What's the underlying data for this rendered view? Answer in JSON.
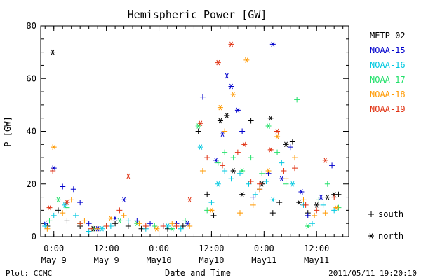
{
  "chart_data": {
    "type": "scatter",
    "title": "Hemispheric Power [GW]",
    "xlabel": "Date and Time",
    "ylabel": "P [GW]",
    "ylim": [
      0,
      80
    ],
    "xlim": [
      "2011-05-08 21:00",
      "2011-05-11 19:20"
    ],
    "y_ticks": [
      0,
      20,
      40,
      60,
      80
    ],
    "x_ticks": [
      {
        "time": "2011-05-09 00:00",
        "line1": "0:00",
        "line2": "May 9"
      },
      {
        "time": "2011-05-09 12:00",
        "line1": "12:00",
        "line2": "May 9"
      },
      {
        "time": "2011-05-10 00:00",
        "line1": "0:00",
        "line2": "May10"
      },
      {
        "time": "2011-05-10 12:00",
        "line1": "12:00",
        "line2": "May10"
      },
      {
        "time": "2011-05-11 00:00",
        "line1": "0:00",
        "line2": "May11"
      },
      {
        "time": "2011-05-11 12:00",
        "line1": "12:00",
        "line2": "May11"
      }
    ],
    "marker_key": [
      {
        "marker": "plus",
        "label": "south"
      },
      {
        "marker": "asterisk",
        "label": "north"
      }
    ],
    "series": [
      {
        "name": "METP-02",
        "color": "#000000",
        "points": [
          [
            "2011-05-08 22:30",
            4,
            "plus"
          ],
          [
            "2011-05-08 23:45",
            70,
            "asterisk"
          ],
          [
            "2011-05-09 01:00",
            10,
            "plus"
          ],
          [
            "2011-05-09 03:00",
            6,
            "plus"
          ],
          [
            "2011-05-09 06:00",
            4,
            "plus"
          ],
          [
            "2011-05-09 09:00",
            3,
            "asterisk"
          ],
          [
            "2011-05-09 14:00",
            5,
            "plus"
          ],
          [
            "2011-05-09 17:00",
            4,
            "plus"
          ],
          [
            "2011-05-09 20:00",
            3,
            "plus"
          ],
          [
            "2011-05-10 02:00",
            3,
            "plus"
          ],
          [
            "2011-05-10 05:30",
            4,
            "plus"
          ],
          [
            "2011-05-10 09:00",
            40,
            "plus"
          ],
          [
            "2011-05-10 11:00",
            16,
            "plus"
          ],
          [
            "2011-05-10 12:30",
            8,
            "plus"
          ],
          [
            "2011-05-10 14:00",
            44,
            "asterisk"
          ],
          [
            "2011-05-10 15:30",
            46,
            "asterisk"
          ],
          [
            "2011-05-10 17:00",
            25,
            "asterisk"
          ],
          [
            "2011-05-10 19:00",
            16,
            "asterisk"
          ],
          [
            "2011-05-10 21:00",
            44,
            "plus"
          ],
          [
            "2011-05-10 23:30",
            20,
            "asterisk"
          ],
          [
            "2011-05-11 01:30",
            45,
            "asterisk"
          ],
          [
            "2011-05-11 02:00",
            9,
            "plus"
          ],
          [
            "2011-05-11 03:30",
            13,
            "plus"
          ],
          [
            "2011-05-11 05:00",
            35,
            "asterisk"
          ],
          [
            "2011-05-11 06:30",
            36,
            "plus"
          ],
          [
            "2011-05-11 08:00",
            13,
            "asterisk"
          ],
          [
            "2011-05-11 10:00",
            9,
            "plus"
          ],
          [
            "2011-05-11 12:00",
            12,
            "asterisk"
          ],
          [
            "2011-05-11 14:30",
            15,
            "asterisk"
          ],
          [
            "2011-05-11 16:00",
            16,
            "asterisk"
          ],
          [
            "2011-05-11 17:00",
            16,
            "plus"
          ]
        ]
      },
      {
        "name": "NOAA-15",
        "color": "#0000cc",
        "points": [
          [
            "2011-05-08 22:00",
            5,
            "asterisk"
          ],
          [
            "2011-05-09 00:00",
            26,
            "asterisk"
          ],
          [
            "2011-05-09 02:00",
            19,
            "plus"
          ],
          [
            "2011-05-09 04:30",
            18,
            "plus"
          ],
          [
            "2011-05-09 06:00",
            13,
            "plus"
          ],
          [
            "2011-05-09 08:00",
            5,
            "plus"
          ],
          [
            "2011-05-09 10:00",
            3,
            "asterisk"
          ],
          [
            "2011-05-09 14:00",
            7,
            "asterisk"
          ],
          [
            "2011-05-09 16:00",
            14,
            "asterisk"
          ],
          [
            "2011-05-09 19:00",
            6,
            "plus"
          ],
          [
            "2011-05-09 22:00",
            5,
            "plus"
          ],
          [
            "2011-05-10 01:00",
            4,
            "plus"
          ],
          [
            "2011-05-10 04:00",
            5,
            "plus"
          ],
          [
            "2011-05-10 06:30",
            5,
            "asterisk"
          ],
          [
            "2011-05-10 10:00",
            53,
            "plus"
          ],
          [
            "2011-05-10 13:00",
            29,
            "asterisk"
          ],
          [
            "2011-05-10 14:30",
            39,
            "asterisk"
          ],
          [
            "2011-05-10 15:30",
            61,
            "asterisk"
          ],
          [
            "2011-05-10 16:30",
            57,
            "asterisk"
          ],
          [
            "2011-05-10 18:00",
            48,
            "asterisk"
          ],
          [
            "2011-05-10 19:00",
            40,
            "plus"
          ],
          [
            "2011-05-10 21:30",
            15,
            "plus"
          ],
          [
            "2011-05-10 23:00",
            18,
            "plus"
          ],
          [
            "2011-05-11 01:00",
            24,
            "plus"
          ],
          [
            "2011-05-11 02:00",
            73,
            "asterisk"
          ],
          [
            "2011-05-11 04:00",
            22,
            "asterisk"
          ],
          [
            "2011-05-11 06:00",
            34,
            "plus"
          ],
          [
            "2011-05-11 08:30",
            17,
            "asterisk"
          ],
          [
            "2011-05-11 10:00",
            8,
            "plus"
          ],
          [
            "2011-05-11 13:00",
            15,
            "asterisk"
          ],
          [
            "2011-05-11 15:30",
            27,
            "plus"
          ]
        ]
      },
      {
        "name": "NOAA-16",
        "color": "#00c8e0",
        "points": [
          [
            "2011-05-08 22:00",
            4,
            "plus"
          ],
          [
            "2011-05-09 00:00",
            8,
            "plus"
          ],
          [
            "2011-05-09 02:30",
            12,
            "asterisk"
          ],
          [
            "2011-05-09 05:00",
            8,
            "plus"
          ],
          [
            "2011-05-09 08:00",
            2,
            "plus"
          ],
          [
            "2011-05-09 11:00",
            3,
            "asterisk"
          ],
          [
            "2011-05-09 13:00",
            4,
            "plus"
          ],
          [
            "2011-05-09 17:00",
            6,
            "plus"
          ],
          [
            "2011-05-09 21:00",
            3,
            "plus"
          ],
          [
            "2011-05-10 02:00",
            4,
            "asterisk"
          ],
          [
            "2011-05-10 05:00",
            3,
            "plus"
          ],
          [
            "2011-05-10 09:30",
            34,
            "asterisk"
          ],
          [
            "2011-05-10 12:00",
            13,
            "plus"
          ],
          [
            "2011-05-10 13:30",
            20,
            "asterisk"
          ],
          [
            "2011-05-10 15:00",
            25,
            "plus"
          ],
          [
            "2011-05-10 16:30",
            22,
            "plus"
          ],
          [
            "2011-05-10 18:30",
            24,
            "plus"
          ],
          [
            "2011-05-10 20:30",
            20,
            "plus"
          ],
          [
            "2011-05-10 22:00",
            16,
            "plus"
          ],
          [
            "2011-05-11 00:30",
            21,
            "plus"
          ],
          [
            "2011-05-11 02:00",
            14,
            "asterisk"
          ],
          [
            "2011-05-11 04:00",
            28,
            "plus"
          ],
          [
            "2011-05-11 06:30",
            20,
            "asterisk"
          ],
          [
            "2011-05-11 09:00",
            12,
            "plus"
          ],
          [
            "2011-05-11 11:00",
            5,
            "plus"
          ],
          [
            "2011-05-11 13:30",
            12,
            "plus"
          ],
          [
            "2011-05-11 16:00",
            10,
            "plus"
          ]
        ]
      },
      {
        "name": "NOAA-17",
        "color": "#22e06a",
        "points": [
          [
            "2011-05-08 23:00",
            6,
            "plus"
          ],
          [
            "2011-05-09 01:00",
            14,
            "asterisk"
          ],
          [
            "2011-05-09 03:00",
            11,
            "plus"
          ],
          [
            "2011-05-09 06:00",
            5,
            "plus"
          ],
          [
            "2011-05-09 09:00",
            3,
            "plus"
          ],
          [
            "2011-05-09 12:00",
            4,
            "plus"
          ],
          [
            "2011-05-09 15:00",
            6,
            "asterisk"
          ],
          [
            "2011-05-09 19:00",
            5,
            "asterisk"
          ],
          [
            "2011-05-09 23:00",
            4,
            "plus"
          ],
          [
            "2011-05-10 03:00",
            3,
            "asterisk"
          ],
          [
            "2011-05-10 06:00",
            6,
            "plus"
          ],
          [
            "2011-05-10 09:00",
            42,
            "asterisk"
          ],
          [
            "2011-05-10 11:00",
            10,
            "plus"
          ],
          [
            "2011-05-10 13:30",
            28,
            "plus"
          ],
          [
            "2011-05-10 15:00",
            32,
            "plus"
          ],
          [
            "2011-05-10 17:00",
            30,
            "plus"
          ],
          [
            "2011-05-10 19:00",
            25,
            "asterisk"
          ],
          [
            "2011-05-10 21:00",
            30,
            "plus"
          ],
          [
            "2011-05-10 23:30",
            24,
            "plus"
          ],
          [
            "2011-05-11 01:00",
            42,
            "asterisk"
          ],
          [
            "2011-05-11 03:00",
            32,
            "plus"
          ],
          [
            "2011-05-11 05:00",
            20,
            "plus"
          ],
          [
            "2011-05-11 07:30",
            52,
            "plus"
          ],
          [
            "2011-05-11 10:00",
            4,
            "asterisk"
          ],
          [
            "2011-05-11 12:30",
            14,
            "plus"
          ],
          [
            "2011-05-11 14:30",
            20,
            "plus"
          ],
          [
            "2011-05-11 17:00",
            11,
            "plus"
          ]
        ]
      },
      {
        "name": "NOAA-18",
        "color": "#ff9900",
        "points": [
          [
            "2011-05-08 22:30",
            3,
            "plus"
          ],
          [
            "2011-05-09 00:00",
            34,
            "asterisk"
          ],
          [
            "2011-05-09 02:00",
            9,
            "plus"
          ],
          [
            "2011-05-09 04:00",
            14,
            "plus"
          ],
          [
            "2011-05-09 07:00",
            6,
            "plus"
          ],
          [
            "2011-05-09 10:00",
            3,
            "plus"
          ],
          [
            "2011-05-09 13:00",
            7,
            "asterisk"
          ],
          [
            "2011-05-09 16:00",
            8,
            "plus"
          ],
          [
            "2011-05-09 19:30",
            5,
            "plus"
          ],
          [
            "2011-05-09 23:30",
            3,
            "asterisk"
          ],
          [
            "2011-05-10 03:00",
            5,
            "plus"
          ],
          [
            "2011-05-10 07:00",
            4,
            "plus"
          ],
          [
            "2011-05-10 10:00",
            25,
            "plus"
          ],
          [
            "2011-05-10 12:00",
            10,
            "asterisk"
          ],
          [
            "2011-05-10 14:00",
            49,
            "asterisk"
          ],
          [
            "2011-05-10 15:00",
            40,
            "plus"
          ],
          [
            "2011-05-10 17:00",
            54,
            "asterisk"
          ],
          [
            "2011-05-10 18:30",
            9,
            "plus"
          ],
          [
            "2011-05-10 20:00",
            67,
            "asterisk"
          ],
          [
            "2011-05-10 21:30",
            12,
            "plus"
          ],
          [
            "2011-05-10 23:00",
            18,
            "plus"
          ],
          [
            "2011-05-11 01:00",
            25,
            "asterisk"
          ],
          [
            "2011-05-11 03:00",
            38,
            "asterisk"
          ],
          [
            "2011-05-11 05:00",
            22,
            "plus"
          ],
          [
            "2011-05-11 07:00",
            30,
            "plus"
          ],
          [
            "2011-05-11 09:00",
            14,
            "plus"
          ],
          [
            "2011-05-11 11:30",
            8,
            "plus"
          ],
          [
            "2011-05-11 14:00",
            9,
            "plus"
          ],
          [
            "2011-05-11 16:30",
            11,
            "asterisk"
          ]
        ]
      },
      {
        "name": "NOAA-19",
        "color": "#e03010",
        "points": [
          [
            "2011-05-08 23:00",
            11,
            "asterisk"
          ],
          [
            "2011-05-08 23:45",
            25,
            "plus"
          ],
          [
            "2011-05-09 03:00",
            13,
            "asterisk"
          ],
          [
            "2011-05-09 06:00",
            5,
            "plus"
          ],
          [
            "2011-05-09 08:30",
            3,
            "plus"
          ],
          [
            "2011-05-09 12:00",
            4,
            "plus"
          ],
          [
            "2011-05-09 15:00",
            10,
            "plus"
          ],
          [
            "2011-05-09 17:00",
            23,
            "asterisk"
          ],
          [
            "2011-05-09 21:00",
            4,
            "plus"
          ],
          [
            "2011-05-10 01:00",
            4,
            "plus"
          ],
          [
            "2011-05-10 04:00",
            4,
            "plus"
          ],
          [
            "2011-05-10 07:00",
            14,
            "asterisk"
          ],
          [
            "2011-05-10 09:30",
            43,
            "asterisk"
          ],
          [
            "2011-05-10 11:00",
            30,
            "plus"
          ],
          [
            "2011-05-10 13:30",
            66,
            "asterisk"
          ],
          [
            "2011-05-10 14:30",
            27,
            "plus"
          ],
          [
            "2011-05-10 16:30",
            73,
            "asterisk"
          ],
          [
            "2011-05-10 18:00",
            32,
            "plus"
          ],
          [
            "2011-05-10 19:30",
            35,
            "asterisk"
          ],
          [
            "2011-05-10 21:00",
            21,
            "plus"
          ],
          [
            "2011-05-10 23:00",
            20,
            "plus"
          ],
          [
            "2011-05-11 01:30",
            33,
            "asterisk"
          ],
          [
            "2011-05-11 03:00",
            40,
            "asterisk"
          ],
          [
            "2011-05-11 04:30",
            25,
            "plus"
          ],
          [
            "2011-05-11 07:00",
            26,
            "plus"
          ],
          [
            "2011-05-11 09:30",
            12,
            "plus"
          ],
          [
            "2011-05-11 12:00",
            10,
            "plus"
          ],
          [
            "2011-05-11 14:00",
            29,
            "asterisk"
          ],
          [
            "2011-05-11 16:00",
            15,
            "plus"
          ]
        ]
      }
    ]
  },
  "footer": {
    "plot_credit": "Plot: CCMC",
    "timestamp": "2011/05/11 19:20:10"
  }
}
